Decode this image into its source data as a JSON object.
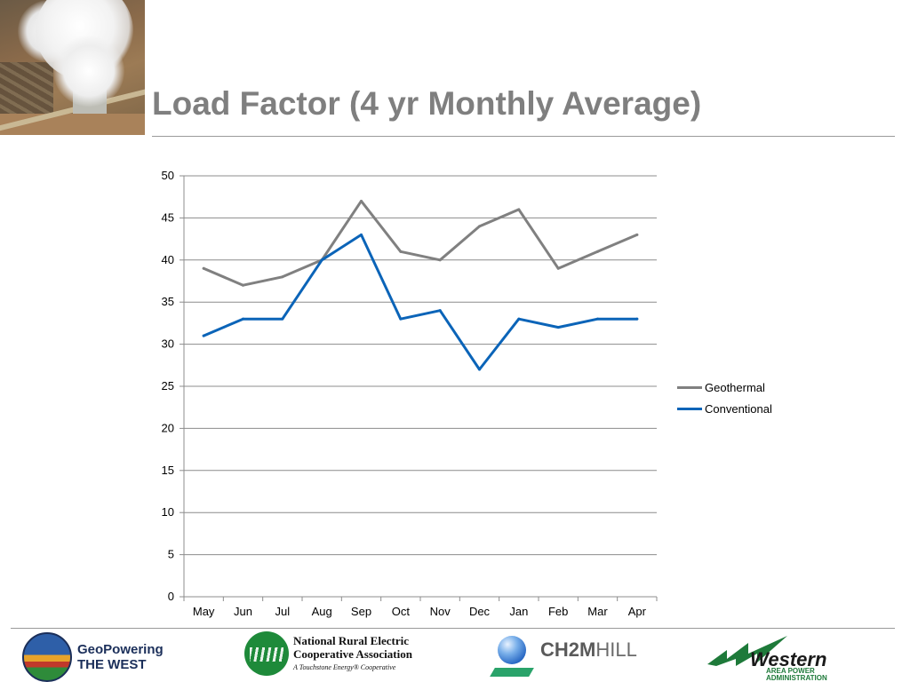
{
  "slide": {
    "title": "Load Factor (4 yr Monthly Average)"
  },
  "chart_data": {
    "type": "line",
    "title": "",
    "xlabel": "",
    "ylabel": "",
    "categories": [
      "May",
      "Jun",
      "Jul",
      "Aug",
      "Sep",
      "Oct",
      "Nov",
      "Dec",
      "Jan",
      "Feb",
      "Mar",
      "Apr"
    ],
    "ylim": [
      0,
      50
    ],
    "yticks": [
      0,
      5,
      10,
      15,
      20,
      25,
      30,
      35,
      40,
      45,
      50
    ],
    "grid": "horizontal",
    "legend": "right",
    "series": [
      {
        "name": "Geothermal",
        "color": "#808080",
        "values": [
          39,
          37,
          38,
          40,
          47,
          41,
          40,
          44,
          46,
          39,
          41,
          43
        ]
      },
      {
        "name": "Conventional",
        "color": "#0b64b8",
        "values": [
          31,
          33,
          33,
          40,
          43,
          33,
          34,
          27,
          33,
          32,
          33,
          33
        ]
      }
    ]
  },
  "footer": {
    "logos": {
      "geopowering_line1": "GeoPowering",
      "geopowering_line2": "THE WEST",
      "nreca_line1": "National Rural Electric",
      "nreca_line2": "Cooperative Association",
      "nreca_tagline": "A Touchstone Energy® Cooperative",
      "ch2m_bold": "CH2M",
      "ch2m_light": "HILL",
      "western_name": "Western",
      "western_sub1": "AREA POWER",
      "western_sub2": "ADMINISTRATION"
    }
  }
}
